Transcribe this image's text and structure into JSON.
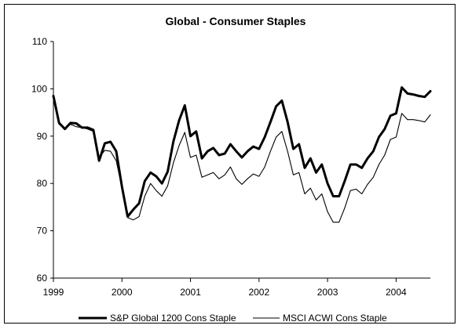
{
  "chart_data": {
    "type": "line",
    "title": "Global - Consumer Staples",
    "xlabel": "",
    "ylabel": "",
    "ylim": [
      60,
      110
    ],
    "yticks": [
      60,
      70,
      80,
      90,
      100,
      110
    ],
    "xlim": [
      1999,
      2004.5
    ],
    "xticks": [
      1999,
      2000,
      2001,
      2002,
      2003,
      2004
    ],
    "grid": false,
    "legend_position": "bottom",
    "series": [
      {
        "name": "S&P Global 1200 Cons Staple",
        "color": "#000000",
        "style": "thick",
        "x": [
          1999.0,
          1999.083,
          1999.167,
          1999.25,
          1999.333,
          1999.417,
          1999.5,
          1999.583,
          1999.667,
          1999.75,
          1999.833,
          1999.917,
          2000.0,
          2000.083,
          2000.167,
          2000.25,
          2000.333,
          2000.417,
          2000.5,
          2000.583,
          2000.667,
          2000.75,
          2000.833,
          2000.917,
          2001.0,
          2001.083,
          2001.167,
          2001.25,
          2001.333,
          2001.417,
          2001.5,
          2001.583,
          2001.667,
          2001.75,
          2001.833,
          2001.917,
          2002.0,
          2002.083,
          2002.167,
          2002.25,
          2002.333,
          2002.417,
          2002.5,
          2002.583,
          2002.667,
          2002.75,
          2002.833,
          2002.917,
          2003.0,
          2003.083,
          2003.167,
          2003.25,
          2003.333,
          2003.417,
          2003.5,
          2003.583,
          2003.667,
          2003.75,
          2003.833,
          2003.917,
          2004.0,
          2004.083,
          2004.167,
          2004.25,
          2004.333,
          2004.417,
          2004.5
        ],
        "values": [
          98.5,
          92.8,
          91.5,
          92.8,
          92.7,
          91.8,
          91.8,
          91.3,
          84.8,
          88.5,
          88.8,
          86.8,
          79.3,
          73.0,
          74.5,
          75.8,
          80.5,
          82.3,
          81.5,
          80.0,
          82.5,
          88.8,
          93.3,
          96.5,
          90.0,
          91.0,
          85.3,
          86.8,
          87.5,
          86.0,
          86.3,
          88.3,
          86.8,
          85.5,
          86.8,
          87.8,
          87.3,
          89.8,
          93.0,
          96.3,
          97.5,
          93.0,
          87.3,
          88.3,
          83.3,
          85.3,
          82.3,
          84.0,
          80.0,
          77.3,
          77.3,
          80.5,
          84.0,
          84.0,
          83.3,
          85.3,
          86.8,
          89.8,
          91.5,
          94.3,
          94.8,
          100.3,
          99.0,
          98.8,
          98.5,
          98.3,
          99.5
        ]
      },
      {
        "name": "MSCI ACWI Cons Staple",
        "color": "#000000",
        "style": "thin",
        "x": [
          1999.0,
          1999.083,
          1999.167,
          1999.25,
          1999.333,
          1999.417,
          1999.5,
          1999.583,
          1999.667,
          1999.75,
          1999.833,
          1999.917,
          2000.0,
          2000.083,
          2000.167,
          2000.25,
          2000.333,
          2000.417,
          2000.5,
          2000.583,
          2000.667,
          2000.75,
          2000.833,
          2000.917,
          2001.0,
          2001.083,
          2001.167,
          2001.25,
          2001.333,
          2001.417,
          2001.5,
          2001.583,
          2001.667,
          2001.75,
          2001.833,
          2001.917,
          2002.0,
          2002.083,
          2002.167,
          2002.25,
          2002.333,
          2002.417,
          2002.5,
          2002.583,
          2002.667,
          2002.75,
          2002.833,
          2002.917,
          2003.0,
          2003.083,
          2003.167,
          2003.25,
          2003.333,
          2003.417,
          2003.5,
          2003.583,
          2003.667,
          2003.75,
          2003.833,
          2003.917,
          2004.0,
          2004.083,
          2004.167,
          2004.25,
          2004.333,
          2004.417,
          2004.5
        ],
        "values": [
          98.5,
          92.5,
          91.5,
          92.5,
          92.0,
          91.8,
          91.5,
          91.0,
          85.5,
          87.0,
          86.8,
          84.8,
          79.0,
          72.8,
          72.3,
          73.0,
          77.3,
          80.0,
          78.5,
          77.3,
          79.5,
          84.3,
          88.0,
          90.8,
          85.5,
          86.0,
          81.3,
          81.8,
          82.3,
          81.0,
          81.8,
          83.5,
          81.0,
          79.8,
          81.0,
          82.0,
          81.5,
          83.5,
          86.8,
          89.8,
          91.0,
          86.8,
          81.8,
          82.3,
          77.8,
          79.0,
          76.5,
          77.8,
          74.0,
          71.8,
          71.8,
          74.8,
          78.5,
          78.8,
          77.8,
          79.8,
          81.3,
          84.0,
          86.0,
          89.3,
          89.8,
          94.8,
          93.5,
          93.5,
          93.3,
          93.0,
          94.5
        ]
      }
    ]
  }
}
